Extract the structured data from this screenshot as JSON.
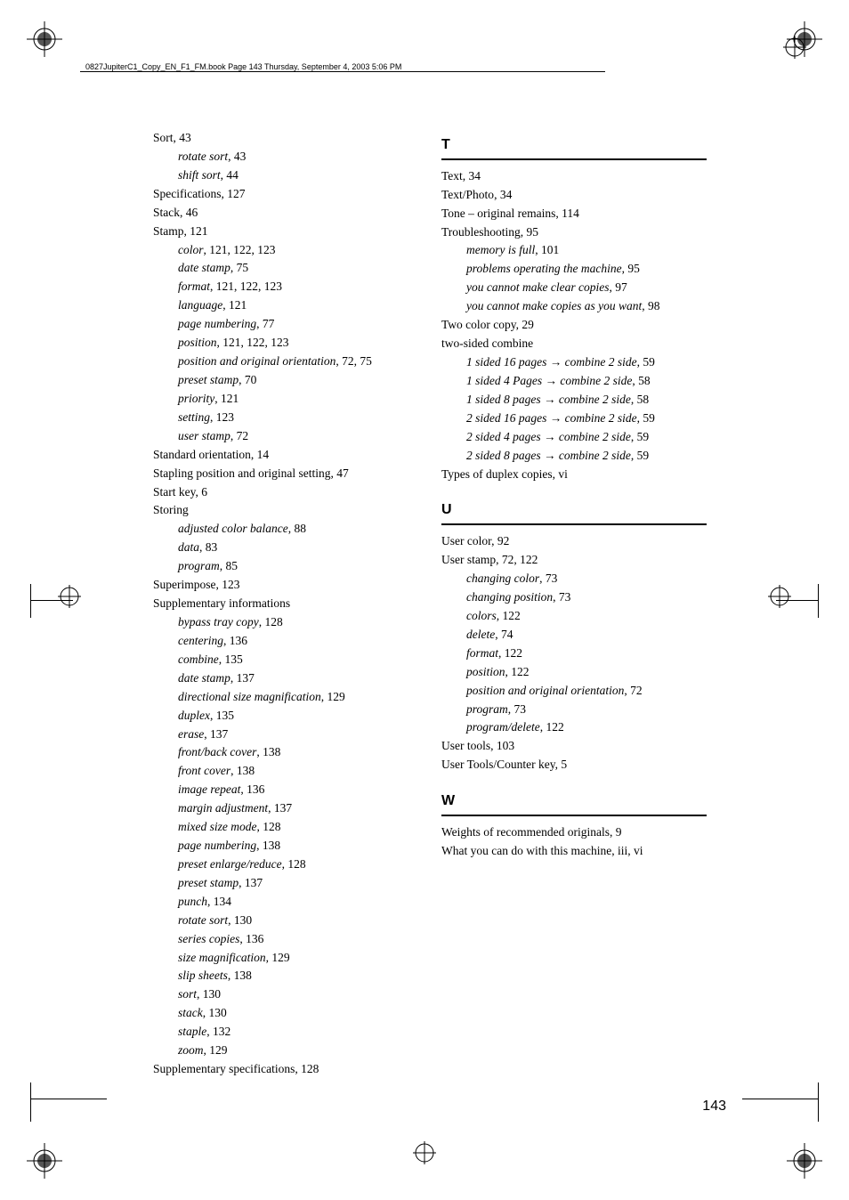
{
  "header": {
    "filepath": "0827JupiterC1_Copy_EN_F1_FM.book  Page 143  Thursday, September 4, 2003  5:06 PM"
  },
  "page_number": "143",
  "left_column": [
    {
      "t": "main",
      "label": "Sort",
      "pages": ",   43"
    },
    {
      "t": "sub",
      "label": "rotate sort",
      "pages": ",   43"
    },
    {
      "t": "sub",
      "label": "shift sort",
      "pages": ",   44"
    },
    {
      "t": "main",
      "label": "Specifications",
      "pages": ",   127"
    },
    {
      "t": "main",
      "label": "Stack",
      "pages": ",   46"
    },
    {
      "t": "main",
      "label": "Stamp",
      "pages": ",   121"
    },
    {
      "t": "sub",
      "label": "color",
      "pages": ",   121, 122, 123"
    },
    {
      "t": "sub",
      "label": "date stamp",
      "pages": ",   75"
    },
    {
      "t": "sub",
      "label": "format",
      "pages": ",   121, 122, 123"
    },
    {
      "t": "sub",
      "label": "language",
      "pages": ",   121"
    },
    {
      "t": "sub",
      "label": "page numbering",
      "pages": ",   77"
    },
    {
      "t": "sub",
      "label": "position",
      "pages": ",   121, 122, 123"
    },
    {
      "t": "sub",
      "label": "position and original orientation",
      "pages": ",   72, 75"
    },
    {
      "t": "sub",
      "label": "preset stamp",
      "pages": ",   70"
    },
    {
      "t": "sub",
      "label": "priority",
      "pages": ",   121"
    },
    {
      "t": "sub",
      "label": "setting",
      "pages": ",   123"
    },
    {
      "t": "sub",
      "label": "user stamp",
      "pages": ",   72"
    },
    {
      "t": "main",
      "label": "Standard orientation",
      "pages": ",   14"
    },
    {
      "t": "main",
      "label": "Stapling position and original setting",
      "pages": ",   47"
    },
    {
      "t": "main",
      "label": "Start key",
      "pages": ",   6"
    },
    {
      "t": "main",
      "label": "Storing",
      "pages": ""
    },
    {
      "t": "sub",
      "label": "adjusted color balance",
      "pages": ",   88"
    },
    {
      "t": "sub",
      "label": "data",
      "pages": ",   83"
    },
    {
      "t": "sub",
      "label": "program",
      "pages": ",   85"
    },
    {
      "t": "main",
      "label": "Superimpose",
      "pages": ",   123"
    },
    {
      "t": "main",
      "label": "Supplementary informations",
      "pages": ""
    },
    {
      "t": "sub",
      "label": "bypass tray copy",
      "pages": ",   128"
    },
    {
      "t": "sub",
      "label": "centering",
      "pages": ",   136"
    },
    {
      "t": "sub",
      "label": "combine",
      "pages": ",   135"
    },
    {
      "t": "sub",
      "label": "date stamp",
      "pages": ",   137"
    },
    {
      "t": "sub",
      "label": "directional size magnification",
      "pages": ",   129"
    },
    {
      "t": "sub",
      "label": "duplex",
      "pages": ",   135"
    },
    {
      "t": "sub",
      "label": "erase",
      "pages": ",   137"
    },
    {
      "t": "sub",
      "label": "front/back cover",
      "pages": ",   138"
    },
    {
      "t": "sub",
      "label": "front cover",
      "pages": ",   138"
    },
    {
      "t": "sub",
      "label": "image repeat",
      "pages": ",   136"
    },
    {
      "t": "sub",
      "label": "margin adjustment",
      "pages": ",   137"
    },
    {
      "t": "sub",
      "label": "mixed size mode",
      "pages": ",   128"
    },
    {
      "t": "sub",
      "label": "page numbering",
      "pages": ",   138"
    },
    {
      "t": "sub",
      "label": "preset enlarge/reduce",
      "pages": ",   128"
    },
    {
      "t": "sub",
      "label": "preset stamp",
      "pages": ",   137"
    },
    {
      "t": "sub",
      "label": "punch",
      "pages": ",   134"
    },
    {
      "t": "sub",
      "label": "rotate sort",
      "pages": ",   130"
    },
    {
      "t": "sub",
      "label": "series copies",
      "pages": ",   136"
    },
    {
      "t": "sub",
      "label": "size magnification",
      "pages": ",   129"
    },
    {
      "t": "sub",
      "label": "slip sheets",
      "pages": ",   138"
    },
    {
      "t": "sub",
      "label": "sort",
      "pages": ",   130"
    },
    {
      "t": "sub",
      "label": "stack",
      "pages": ",   130"
    },
    {
      "t": "sub",
      "label": "staple",
      "pages": ",   132"
    },
    {
      "t": "sub",
      "label": "zoom",
      "pages": ",   129"
    },
    {
      "t": "main",
      "label": "Supplementary specifications",
      "pages": ",   128"
    }
  ],
  "right_sections": [
    {
      "letter": "T",
      "entries": [
        {
          "t": "main",
          "label": "Text",
          "pages": ",   34"
        },
        {
          "t": "main",
          "label": "Text/Photo",
          "pages": ",   34"
        },
        {
          "t": "main",
          "label": "Tone – original remains",
          "pages": ",   114"
        },
        {
          "t": "main",
          "label": "Troubleshooting",
          "pages": ",   95"
        },
        {
          "t": "sub",
          "label": "memory is full",
          "pages": ",   101"
        },
        {
          "t": "sub",
          "label": "problems operating the machine",
          "pages": ",   95"
        },
        {
          "t": "sub",
          "label": "you cannot make clear copies",
          "pages": ",   97"
        },
        {
          "t": "sub",
          "label": "you cannot make copies as you want",
          "pages": ",   98"
        },
        {
          "t": "main",
          "label": "Two color copy",
          "pages": ",   29"
        },
        {
          "t": "main",
          "label": "two-sided combine",
          "pages": ""
        },
        {
          "t": "sub_arrow",
          "label1": "1 sided 16 pages",
          "label2": "combine 2 side",
          "pages": ",   59"
        },
        {
          "t": "sub_arrow",
          "label1": "1 sided 4 Pages",
          "label2": "combine 2 side",
          "pages": ",   58"
        },
        {
          "t": "sub_arrow",
          "label1": "1 sided 8 pages",
          "label2": "combine 2 side",
          "pages": ",   58"
        },
        {
          "t": "sub_arrow",
          "label1": "2 sided 16 pages",
          "label2": "combine 2 side",
          "pages": ",   59"
        },
        {
          "t": "sub_arrow",
          "label1": "2 sided 4 pages",
          "label2": "combine 2 side",
          "pages": ",   59"
        },
        {
          "t": "sub_arrow",
          "label1": "2 sided 8 pages",
          "label2": "combine 2 side",
          "pages": ",   59"
        },
        {
          "t": "main",
          "label": "Types of duplex copies",
          "pages": ",   vi"
        }
      ]
    },
    {
      "letter": "U",
      "entries": [
        {
          "t": "main",
          "label": "User color",
          "pages": ",   92"
        },
        {
          "t": "main",
          "label": "User stamp",
          "pages": ",   72, 122"
        },
        {
          "t": "sub",
          "label": "changing color",
          "pages": ",   73"
        },
        {
          "t": "sub",
          "label": "changing position",
          "pages": ",   73"
        },
        {
          "t": "sub",
          "label": "colors",
          "pages": ",   122"
        },
        {
          "t": "sub",
          "label": "delete",
          "pages": ",   74"
        },
        {
          "t": "sub",
          "label": "format",
          "pages": ",   122"
        },
        {
          "t": "sub",
          "label": "position",
          "pages": ",   122"
        },
        {
          "t": "sub",
          "label": "position and original orientation",
          "pages": ",   72"
        },
        {
          "t": "sub",
          "label": "program",
          "pages": ",   73"
        },
        {
          "t": "sub",
          "label": "program/delete",
          "pages": ",   122"
        },
        {
          "t": "main",
          "label": "User tools",
          "pages": ",   103"
        },
        {
          "t": "main",
          "label": "User Tools/Counter key",
          "pages": ",   5"
        }
      ]
    },
    {
      "letter": "W",
      "entries": [
        {
          "t": "main",
          "label": "Weights of recommended originals",
          "pages": ",   9"
        },
        {
          "t": "main",
          "label": "What you can do with this machine",
          "pages": ",   iii, vi"
        }
      ]
    }
  ]
}
